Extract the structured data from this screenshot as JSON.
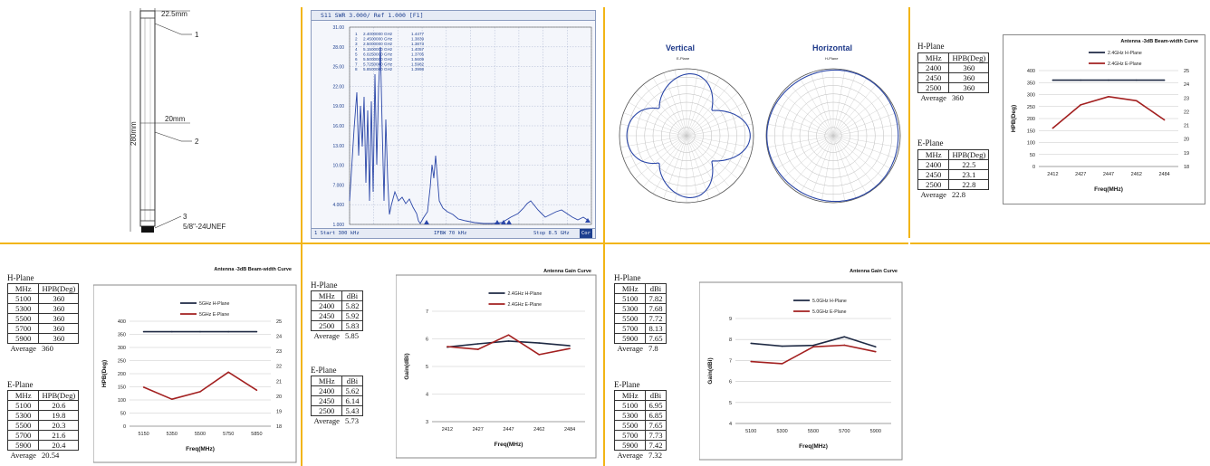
{
  "antenna_drawing": {
    "dim_top": "22.5mm",
    "dim_mid": "20mm",
    "dim_length": "280mm",
    "callouts": [
      "1",
      "2",
      "3"
    ],
    "connector": "5/8\"-24UNEF"
  },
  "vna": {
    "header": "S11  SWR  3.000/ Ref 1.000  [F1]",
    "yticks": [
      "31.00",
      "28.00",
      "25.00",
      "22.00",
      "19.00",
      "16.00",
      "13.00",
      "10.00",
      "7.000",
      "4.000",
      "1.000"
    ],
    "markers": [
      {
        "id": "1",
        "freq": "2.4000000 GHz",
        "val": "1.4477"
      },
      {
        "id": "2",
        "freq": "2.4500000 GHz",
        "val": "1.3839"
      },
      {
        "id": "3",
        "freq": "2.5000000 GHz",
        "val": "1.3873"
      },
      {
        "id": "4",
        "freq": "5.1500000 GHz",
        "val": "1.4057"
      },
      {
        "id": "5",
        "freq": "6.0250000 GHz",
        "val": "1.3705"
      },
      {
        "id": "6",
        "freq": "5.5000000 GHz",
        "val": "1.5609"
      },
      {
        "id": "7",
        "freq": "5.7250000 GHz",
        "val": "1.5982"
      },
      {
        "id": "8",
        "freq": "5.8500000 GHz",
        "val": "1.3998"
      }
    ],
    "footer_left": "1  Start 300 kHz",
    "footer_mid": "IFBW 70 kHz",
    "footer_right": "Stop 8.5 GHz",
    "footer_badge": "Cor"
  },
  "polar": {
    "vertical_title": "Vertical",
    "vertical_sub": "E-Plane",
    "horizontal_title": "Horizontal",
    "horizontal_sub": "H-Plane"
  },
  "tables": {
    "t1": {
      "hplane_title": "H-Plane",
      "hplane_head": [
        "MHz",
        "HPB(Deg)"
      ],
      "hplane_rows": [
        [
          "2400",
          "360"
        ],
        [
          "2450",
          "360"
        ],
        [
          "2500",
          "360"
        ]
      ],
      "hplane_avg": [
        "Average",
        "360"
      ],
      "eplane_title": "E-Plane",
      "eplane_head": [
        "MHz",
        "HPB(Deg)"
      ],
      "eplane_rows": [
        [
          "2400",
          "22.5"
        ],
        [
          "2450",
          "23.1"
        ],
        [
          "2500",
          "22.8"
        ]
      ],
      "eplane_avg": [
        "Average",
        "22.8"
      ]
    },
    "t2": {
      "hplane_title": "H-Plane",
      "hplane_head": [
        "MHz",
        "HPB(Deg)"
      ],
      "hplane_rows": [
        [
          "5100",
          "360"
        ],
        [
          "5300",
          "360"
        ],
        [
          "5500",
          "360"
        ],
        [
          "5700",
          "360"
        ],
        [
          "5900",
          "360"
        ]
      ],
      "hplane_avg": [
        "Average",
        "360"
      ],
      "eplane_title": "E-Plane",
      "eplane_head": [
        "MHz",
        "HPB(Deg)"
      ],
      "eplane_rows": [
        [
          "5100",
          "20.6"
        ],
        [
          "5300",
          "19.8"
        ],
        [
          "5500",
          "20.3"
        ],
        [
          "5700",
          "21.6"
        ],
        [
          "5900",
          "20.4"
        ]
      ],
      "eplane_avg": [
        "Average",
        "20.54"
      ]
    },
    "t3": {
      "hplane_title": "H-Plane",
      "hplane_head": [
        "MHz",
        "dBi"
      ],
      "hplane_rows": [
        [
          "2400",
          "5.82"
        ],
        [
          "2450",
          "5.92"
        ],
        [
          "2500",
          "5.83"
        ]
      ],
      "hplane_avg": [
        "Average",
        "5.85"
      ],
      "eplane_title": "E-Plane",
      "eplane_head": [
        "MHz",
        "dBi"
      ],
      "eplane_rows": [
        [
          "2400",
          "5.62"
        ],
        [
          "2450",
          "6.14"
        ],
        [
          "2500",
          "5.43"
        ]
      ],
      "eplane_avg": [
        "Average",
        "5.73"
      ]
    },
    "t4": {
      "hplane_title": "H-Plane",
      "hplane_head": [
        "MHz",
        "dBi"
      ],
      "hplane_rows": [
        [
          "5100",
          "7.82"
        ],
        [
          "5300",
          "7.68"
        ],
        [
          "5500",
          "7.72"
        ],
        [
          "5700",
          "8.13"
        ],
        [
          "5900",
          "7.65"
        ]
      ],
      "hplane_avg": [
        "Average",
        "7.8"
      ],
      "eplane_title": "E-Plane",
      "eplane_head": [
        "MHz",
        "dBi"
      ],
      "eplane_rows": [
        [
          "5100",
          "6.95"
        ],
        [
          "5300",
          "6.85"
        ],
        [
          "5500",
          "7.65"
        ],
        [
          "5700",
          "7.73"
        ],
        [
          "5900",
          "7.42"
        ]
      ],
      "eplane_avg": [
        "Average",
        "7.32"
      ]
    }
  },
  "chart_data": [
    {
      "id": "c1",
      "type": "line",
      "title": "Antenna -3dB Beam-width Curve",
      "categories": [
        "2412",
        "2427",
        "2447",
        "2462",
        "2484"
      ],
      "xlabel": "Freq(MHz)",
      "ylabel": "HPB(Deg)",
      "ylim": [
        0,
        400
      ],
      "yticks": [
        0,
        50,
        100,
        150,
        200,
        250,
        300,
        350,
        400
      ],
      "y2lim": [
        18,
        25
      ],
      "y2ticks": [
        18,
        19,
        20,
        21,
        22,
        23,
        24,
        25
      ],
      "legend": "top",
      "series": [
        {
          "name": "2.4GHz H-Plane",
          "color": "#1f2a44",
          "axis": "left",
          "values": [
            360,
            360,
            360,
            360,
            360
          ]
        },
        {
          "name": "2.4GHz E-Plane",
          "color": "#a32020",
          "axis": "right",
          "values": [
            20.8,
            22.5,
            23.1,
            22.8,
            21.4
          ]
        }
      ]
    },
    {
      "id": "c2",
      "type": "line",
      "title": "Antenna -3dB Beam-width Curve",
      "categories": [
        "5150",
        "5350",
        "5500",
        "5750",
        "5850"
      ],
      "xlabel": "Freq(MHz)",
      "ylabel": "HPB(Deg)",
      "ylim": [
        0,
        400
      ],
      "yticks": [
        0,
        50,
        100,
        150,
        200,
        250,
        300,
        350,
        400
      ],
      "y2lim": [
        18,
        25
      ],
      "y2ticks": [
        18,
        19,
        20,
        21,
        22,
        23,
        24,
        25
      ],
      "legend": "top",
      "series": [
        {
          "name": "5GHz H-Plane",
          "color": "#1f2a44",
          "axis": "left",
          "values": [
            360,
            360,
            360,
            360,
            360
          ]
        },
        {
          "name": "5GHz E-Plane",
          "color": "#a32020",
          "axis": "right",
          "values": [
            20.6,
            19.8,
            20.3,
            21.6,
            20.4
          ]
        }
      ]
    },
    {
      "id": "c3",
      "type": "line",
      "title": "Antenna Gain Curve",
      "categories": [
        "2412",
        "2427",
        "2447",
        "2462",
        "2484"
      ],
      "xlabel": "Freq(MHz)",
      "ylabel": "Gain(dBi)",
      "ylim": [
        3,
        7
      ],
      "yticks": [
        3,
        4,
        5,
        6,
        7
      ],
      "legend": "top",
      "series": [
        {
          "name": "2.4GHz H-Plane",
          "color": "#1f2a44",
          "axis": "left",
          "values": [
            5.7,
            5.82,
            5.92,
            5.85,
            5.75
          ]
        },
        {
          "name": "2.4GHz E-Plane",
          "color": "#a32020",
          "axis": "left",
          "values": [
            5.72,
            5.62,
            6.14,
            5.43,
            5.65
          ]
        }
      ]
    },
    {
      "id": "c4",
      "type": "line",
      "title": "Antenna Gain Curve",
      "categories": [
        "5100",
        "5300",
        "5500",
        "5700",
        "5900"
      ],
      "xlabel": "Freq(MHz)",
      "ylabel": "Gain(dBi)",
      "ylim": [
        4,
        9
      ],
      "yticks": [
        4,
        5,
        6,
        7,
        8,
        9
      ],
      "legend": "top",
      "series": [
        {
          "name": "5.0GHz H-Plane",
          "color": "#1f2a44",
          "axis": "left",
          "values": [
            7.82,
            7.68,
            7.72,
            8.13,
            7.65
          ]
        },
        {
          "name": "5.0GHz E-Plane",
          "color": "#a32020",
          "axis": "left",
          "values": [
            6.95,
            6.85,
            7.65,
            7.73,
            7.42
          ]
        }
      ]
    }
  ]
}
